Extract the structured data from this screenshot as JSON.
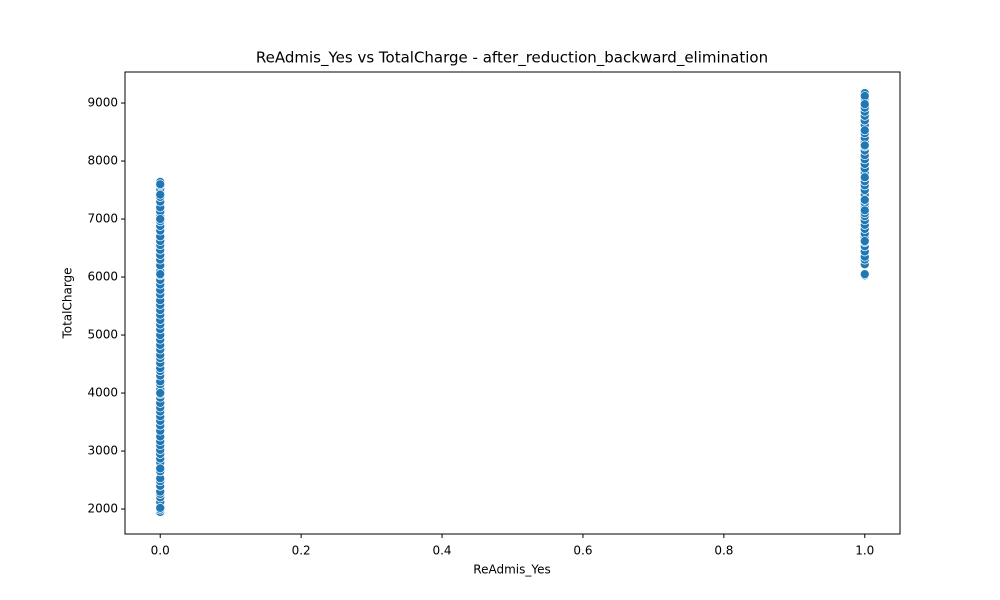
{
  "chart_data": {
    "type": "scatter",
    "title": "ReAdmis_Yes vs TotalCharge - after_reduction_backward_elimination",
    "x_label": "ReAdmis_Yes",
    "y_label": "TotalCharge",
    "color": "#1f77b4",
    "x": [
      0,
      0,
      0,
      0,
      0,
      0,
      0,
      0,
      0,
      0,
      0,
      0,
      0,
      0,
      0,
      0,
      0,
      0,
      0,
      0,
      0,
      0,
      0,
      0,
      0,
      0,
      0,
      0,
      0,
      0,
      0,
      0,
      0,
      0,
      0,
      0,
      0,
      0,
      0,
      0,
      0,
      0,
      0,
      0,
      0,
      0,
      0,
      0,
      0,
      0,
      0,
      0,
      0,
      0,
      0,
      0,
      0,
      0,
      0,
      0,
      0,
      0,
      0,
      0,
      0,
      0,
      0,
      0,
      0,
      0,
      0,
      0,
      0,
      0,
      0,
      0,
      0,
      0,
      0,
      0,
      1,
      1,
      1,
      1,
      1,
      1,
      1,
      1,
      1,
      1,
      1,
      1,
      1,
      1,
      1,
      1,
      1,
      1,
      1,
      1,
      1,
      1,
      1,
      1,
      1,
      1,
      1,
      1,
      1,
      1,
      1,
      1,
      1,
      1,
      1,
      1,
      1,
      1,
      1,
      1,
      1,
      1,
      1,
      1,
      1,
      1,
      1,
      1,
      1,
      1
    ],
    "y": [
      1950,
      1990,
      2050,
      2120,
      2200,
      2260,
      2300,
      2400,
      2480,
      2530,
      2650,
      2720,
      2800,
      2870,
      2950,
      3020,
      3100,
      3170,
      3250,
      3350,
      3440,
      3520,
      3600,
      3680,
      3750,
      3830,
      3920,
      3980,
      4060,
      4150,
      4200,
      4300,
      4380,
      4430,
      4520,
      4600,
      4660,
      4750,
      4830,
      4920,
      5000,
      5100,
      5180,
      5260,
      5350,
      5430,
      5520,
      5600,
      5700,
      5780,
      5870,
      5950,
      6030,
      6100,
      6200,
      6300,
      6380,
      6470,
      6550,
      6620,
      6700,
      6800,
      6880,
      6960,
      7050,
      7130,
      7200,
      7300,
      7380,
      7460,
      7520,
      7580,
      7640,
      7600,
      7420,
      7000,
      6050,
      4000,
      2700,
      2020,
      6030,
      6220,
      6300,
      6350,
      6440,
      6530,
      6600,
      6680,
      6750,
      6830,
      6900,
      6980,
      7050,
      7100,
      7200,
      7280,
      7330,
      7420,
      7500,
      7580,
      7650,
      7730,
      7800,
      7870,
      7950,
      8030,
      8100,
      8180,
      8250,
      8320,
      8400,
      8480,
      8550,
      8620,
      8700,
      8780,
      8850,
      8920,
      9000,
      9080,
      9170,
      9120,
      8980,
      8270,
      7720,
      7150,
      6620,
      6050,
      8530,
      7330
    ],
    "xlim": [
      -0.05,
      1.05
    ],
    "xticks": [
      {
        "value": 0,
        "label": "0.0"
      },
      0.2,
      0.4,
      0.6,
      0.8,
      {
        "value": 1,
        "label": "1.0"
      }
    ],
    "ylim": [
      1570,
      9535
    ],
    "yticks": [
      2000,
      3000,
      4000,
      5000,
      6000,
      7000,
      8000,
      9000
    ]
  }
}
